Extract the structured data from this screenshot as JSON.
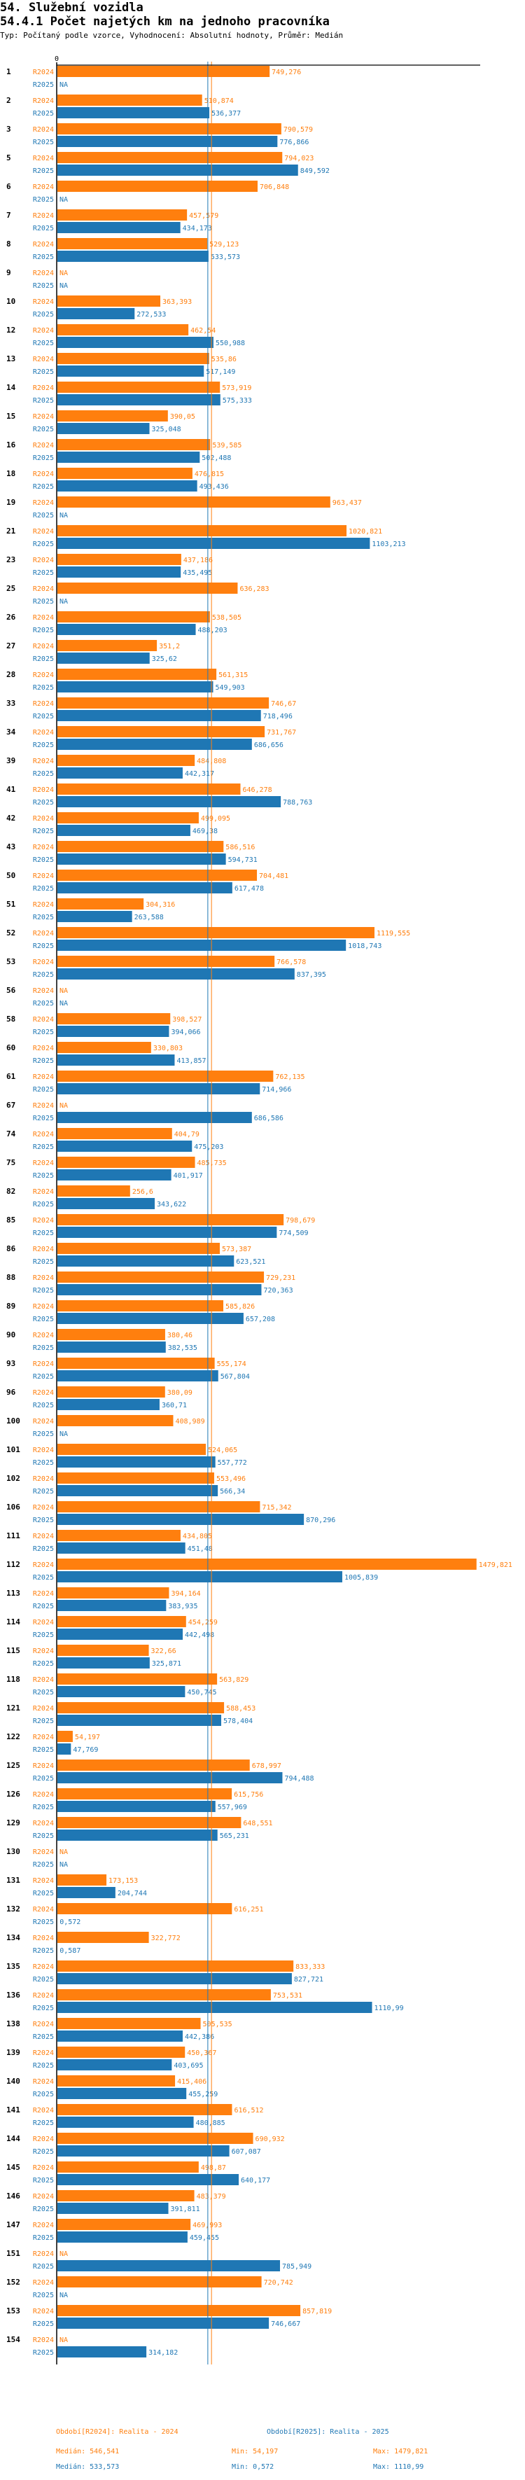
{
  "header": {
    "title": "54. Služební vozidla",
    "subtitle": "54.4.1 Počet najetých km na jednoho pracovníka",
    "meta": "Typ: Počítaný podle vzorce, Vyhodnocení: Absolutní hodnoty, Průměr: Medián"
  },
  "colors": {
    "R2024": "#ff7f0e",
    "R2025": "#1f77b4",
    "axis": "#000000"
  },
  "chart_data": {
    "type": "bar",
    "orientation": "horizontal",
    "title": "54.4.1 Počet najetých km na jednoho pracovníka",
    "xlabel": "",
    "ylabel": "",
    "x_tick_labels": [
      "0"
    ],
    "xlim": [
      0,
      1479.821
    ],
    "grid": false,
    "series_names": [
      "R2024",
      "R2025"
    ],
    "reference_lines": [
      {
        "series": "R2024",
        "type": "median",
        "value": 546.541
      },
      {
        "series": "R2025",
        "type": "median",
        "value": 533.573
      }
    ],
    "groups": [
      {
        "id": "1",
        "R2024": 749.276,
        "R2025": null,
        "R2024_label": "749,276",
        "R2025_label": "NA"
      },
      {
        "id": "2",
        "R2024": 510.874,
        "R2025": 536.377,
        "R2024_label": "510,874",
        "R2025_label": "536,377"
      },
      {
        "id": "3",
        "R2024": 790.579,
        "R2025": 776.866,
        "R2024_label": "790,579",
        "R2025_label": "776,866"
      },
      {
        "id": "5",
        "R2024": 794.023,
        "R2025": 849.592,
        "R2024_label": "794,023",
        "R2025_label": "849,592"
      },
      {
        "id": "6",
        "R2024": 706.848,
        "R2025": null,
        "R2024_label": "706,848",
        "R2025_label": "NA"
      },
      {
        "id": "7",
        "R2024": 457.579,
        "R2025": 434.173,
        "R2024_label": "457,579",
        "R2025_label": "434,173"
      },
      {
        "id": "8",
        "R2024": 529.123,
        "R2025": 533.573,
        "R2024_label": "529,123",
        "R2025_label": "533,573"
      },
      {
        "id": "9",
        "R2024": null,
        "R2025": null,
        "R2024_label": "NA",
        "R2025_label": "NA"
      },
      {
        "id": "10",
        "R2024": 363.393,
        "R2025": 272.533,
        "R2024_label": "363,393",
        "R2025_label": "272,533"
      },
      {
        "id": "12",
        "R2024": 462.54,
        "R2025": 550.988,
        "R2024_label": "462,54",
        "R2025_label": "550,988"
      },
      {
        "id": "13",
        "R2024": 535.86,
        "R2025": 517.149,
        "R2024_label": "535,86",
        "R2025_label": "517,149"
      },
      {
        "id": "14",
        "R2024": 573.919,
        "R2025": 575.333,
        "R2024_label": "573,919",
        "R2025_label": "575,333"
      },
      {
        "id": "15",
        "R2024": 390.05,
        "R2025": 325.048,
        "R2024_label": "390,05",
        "R2025_label": "325,048"
      },
      {
        "id": "16",
        "R2024": 539.585,
        "R2025": 502.488,
        "R2024_label": "539,585",
        "R2025_label": "502,488"
      },
      {
        "id": "18",
        "R2024": 476.815,
        "R2025": 493.436,
        "R2024_label": "476,815",
        "R2025_label": "493,436"
      },
      {
        "id": "19",
        "R2024": 963.437,
        "R2025": null,
        "R2024_label": "963,437",
        "R2025_label": "NA"
      },
      {
        "id": "21",
        "R2024": 1020.821,
        "R2025": 1103.213,
        "R2024_label": "1020,821",
        "R2025_label": "1103,213"
      },
      {
        "id": "23",
        "R2024": 437.186,
        "R2025": 435.495,
        "R2024_label": "437,186",
        "R2025_label": "435,495"
      },
      {
        "id": "25",
        "R2024": 636.283,
        "R2025": null,
        "R2024_label": "636,283",
        "R2025_label": "NA"
      },
      {
        "id": "26",
        "R2024": 538.505,
        "R2025": 488.203,
        "R2024_label": "538,505",
        "R2025_label": "488,203"
      },
      {
        "id": "27",
        "R2024": 351.2,
        "R2025": 325.62,
        "R2024_label": "351,2",
        "R2025_label": "325,62"
      },
      {
        "id": "28",
        "R2024": 561.315,
        "R2025": 549.903,
        "R2024_label": "561,315",
        "R2025_label": "549,903"
      },
      {
        "id": "33",
        "R2024": 746.67,
        "R2025": 718.496,
        "R2024_label": "746,67",
        "R2025_label": "718,496"
      },
      {
        "id": "34",
        "R2024": 731.767,
        "R2025": 686.656,
        "R2024_label": "731,767",
        "R2025_label": "686,656"
      },
      {
        "id": "39",
        "R2024": 484.808,
        "R2025": 442.317,
        "R2024_label": "484,808",
        "R2025_label": "442,317"
      },
      {
        "id": "41",
        "R2024": 646.278,
        "R2025": 788.763,
        "R2024_label": "646,278",
        "R2025_label": "788,763"
      },
      {
        "id": "42",
        "R2024": 499.095,
        "R2025": 469.38,
        "R2024_label": "499,095",
        "R2025_label": "469,38"
      },
      {
        "id": "43",
        "R2024": 586.516,
        "R2025": 594.731,
        "R2024_label": "586,516",
        "R2025_label": "594,731"
      },
      {
        "id": "50",
        "R2024": 704.481,
        "R2025": 617.478,
        "R2024_label": "704,481",
        "R2025_label": "617,478"
      },
      {
        "id": "51",
        "R2024": 304.316,
        "R2025": 263.588,
        "R2024_label": "304,316",
        "R2025_label": "263,588"
      },
      {
        "id": "52",
        "R2024": 1119.555,
        "R2025": 1018.743,
        "R2024_label": "1119,555",
        "R2025_label": "1018,743"
      },
      {
        "id": "53",
        "R2024": 766.578,
        "R2025": 837.395,
        "R2024_label": "766,578",
        "R2025_label": "837,395"
      },
      {
        "id": "56",
        "R2024": null,
        "R2025": null,
        "R2024_label": "NA",
        "R2025_label": "NA"
      },
      {
        "id": "58",
        "R2024": 398.527,
        "R2025": 394.066,
        "R2024_label": "398,527",
        "R2025_label": "394,066"
      },
      {
        "id": "60",
        "R2024": 330.803,
        "R2025": 413.857,
        "R2024_label": "330,803",
        "R2025_label": "413,857"
      },
      {
        "id": "61",
        "R2024": 762.135,
        "R2025": 714.966,
        "R2024_label": "762,135",
        "R2025_label": "714,966"
      },
      {
        "id": "67",
        "R2024": null,
        "R2025": 686.586,
        "R2024_label": "NA",
        "R2025_label": "686,586"
      },
      {
        "id": "74",
        "R2024": 404.79,
        "R2025": 475.203,
        "R2024_label": "404,79",
        "R2025_label": "475,203"
      },
      {
        "id": "75",
        "R2024": 485.735,
        "R2025": 401.917,
        "R2024_label": "485,735",
        "R2025_label": "401,917"
      },
      {
        "id": "82",
        "R2024": 256.6,
        "R2025": 343.622,
        "R2024_label": "256,6",
        "R2025_label": "343,622"
      },
      {
        "id": "85",
        "R2024": 798.679,
        "R2025": 774.509,
        "R2024_label": "798,679",
        "R2025_label": "774,509"
      },
      {
        "id": "86",
        "R2024": 573.387,
        "R2025": 623.521,
        "R2024_label": "573,387",
        "R2025_label": "623,521"
      },
      {
        "id": "88",
        "R2024": 729.231,
        "R2025": 720.363,
        "R2024_label": "729,231",
        "R2025_label": "720,363"
      },
      {
        "id": "89",
        "R2024": 585.826,
        "R2025": 657.208,
        "R2024_label": "585,826",
        "R2025_label": "657,208"
      },
      {
        "id": "90",
        "R2024": 380.46,
        "R2025": 382.535,
        "R2024_label": "380,46",
        "R2025_label": "382,535"
      },
      {
        "id": "93",
        "R2024": 555.174,
        "R2025": 567.804,
        "R2024_label": "555,174",
        "R2025_label": "567,804"
      },
      {
        "id": "96",
        "R2024": 380.09,
        "R2025": 360.71,
        "R2024_label": "380,09",
        "R2025_label": "360,71"
      },
      {
        "id": "100",
        "R2024": 408.989,
        "R2025": null,
        "R2024_label": "408,989",
        "R2025_label": "NA"
      },
      {
        "id": "101",
        "R2024": 524.065,
        "R2025": 557.772,
        "R2024_label": "524,065",
        "R2025_label": "557,772"
      },
      {
        "id": "102",
        "R2024": 553.496,
        "R2025": 566.34,
        "R2024_label": "553,496",
        "R2025_label": "566,34"
      },
      {
        "id": "106",
        "R2024": 715.342,
        "R2025": 870.296,
        "R2024_label": "715,342",
        "R2025_label": "870,296"
      },
      {
        "id": "111",
        "R2024": 434.805,
        "R2025": 451.48,
        "R2024_label": "434,805",
        "R2025_label": "451,48"
      },
      {
        "id": "112",
        "R2024": 1479.821,
        "R2025": 1005.839,
        "R2024_label": "1479,821",
        "R2025_label": "1005,839"
      },
      {
        "id": "113",
        "R2024": 394.164,
        "R2025": 383.935,
        "R2024_label": "394,164",
        "R2025_label": "383,935"
      },
      {
        "id": "114",
        "R2024": 454.259,
        "R2025": 442.498,
        "R2024_label": "454,259",
        "R2025_label": "442,498"
      },
      {
        "id": "115",
        "R2024": 322.66,
        "R2025": 325.871,
        "R2024_label": "322,66",
        "R2025_label": "325,871"
      },
      {
        "id": "118",
        "R2024": 563.829,
        "R2025": 450.745,
        "R2024_label": "563,829",
        "R2025_label": "450,745"
      },
      {
        "id": "121",
        "R2024": 588.453,
        "R2025": 578.404,
        "R2024_label": "588,453",
        "R2025_label": "578,404"
      },
      {
        "id": "122",
        "R2024": 54.197,
        "R2025": 47.769,
        "R2024_label": "54,197",
        "R2025_label": "47,769"
      },
      {
        "id": "125",
        "R2024": 678.997,
        "R2025": 794.488,
        "R2024_label": "678,997",
        "R2025_label": "794,488"
      },
      {
        "id": "126",
        "R2024": 615.756,
        "R2025": 557.969,
        "R2024_label": "615,756",
        "R2025_label": "557,969"
      },
      {
        "id": "129",
        "R2024": 648.551,
        "R2025": 565.231,
        "R2024_label": "648,551",
        "R2025_label": "565,231"
      },
      {
        "id": "130",
        "R2024": null,
        "R2025": null,
        "R2024_label": "NA",
        "R2025_label": "NA"
      },
      {
        "id": "131",
        "R2024": 173.153,
        "R2025": 204.744,
        "R2024_label": "173,153",
        "R2025_label": "204,744"
      },
      {
        "id": "132",
        "R2024": 616.251,
        "R2025": 0.572,
        "R2024_label": "616,251",
        "R2025_label": "0,572"
      },
      {
        "id": "134",
        "R2024": 322.772,
        "R2025": 0.587,
        "R2024_label": "322,772",
        "R2025_label": "0,587"
      },
      {
        "id": "135",
        "R2024": 833.333,
        "R2025": 827.721,
        "R2024_label": "833,333",
        "R2025_label": "827,721"
      },
      {
        "id": "136",
        "R2024": 753.531,
        "R2025": 1110.99,
        "R2024_label": "753,531",
        "R2025_label": "1110,99"
      },
      {
        "id": "138",
        "R2024": 505.535,
        "R2025": 442.386,
        "R2024_label": "505,535",
        "R2025_label": "442,386"
      },
      {
        "id": "139",
        "R2024": 450.367,
        "R2025": 403.695,
        "R2024_label": "450,367",
        "R2025_label": "403,695"
      },
      {
        "id": "140",
        "R2024": 415.406,
        "R2025": 455.259,
        "R2024_label": "415,406",
        "R2025_label": "455,259"
      },
      {
        "id": "141",
        "R2024": 616.512,
        "R2025": 480.885,
        "R2024_label": "616,512",
        "R2025_label": "480,885"
      },
      {
        "id": "144",
        "R2024": 690.932,
        "R2025": 607.087,
        "R2024_label": "690,932",
        "R2025_label": "607,087"
      },
      {
        "id": "145",
        "R2024": 498.87,
        "R2025": 640.177,
        "R2024_label": "498,87",
        "R2025_label": "640,177"
      },
      {
        "id": "146",
        "R2024": 483.379,
        "R2025": 391.811,
        "R2024_label": "483,379",
        "R2025_label": "391,811"
      },
      {
        "id": "147",
        "R2024": 469.993,
        "R2025": 459.455,
        "R2024_label": "469,993",
        "R2025_label": "459,455"
      },
      {
        "id": "151",
        "R2024": null,
        "R2025": 785.949,
        "R2024_label": "NA",
        "R2025_label": "785,949"
      },
      {
        "id": "152",
        "R2024": 720.742,
        "R2025": null,
        "R2024_label": "720,742",
        "R2025_label": "NA"
      },
      {
        "id": "153",
        "R2024": 857.819,
        "R2025": 746.667,
        "R2024_label": "857,819",
        "R2025_label": "746,667"
      },
      {
        "id": "154",
        "R2024": null,
        "R2025": 314.182,
        "R2024_label": "NA",
        "R2025_label": "314,182"
      }
    ]
  },
  "legend": {
    "r2024_period": "Období[R2024]: Realita - 2024",
    "r2025_period": "Období[R2025]: Realita - 2025",
    "r2024_median": "Medián: 546,541",
    "r2024_min": "Min: 54,197",
    "r2024_max": "Max: 1479,821",
    "r2025_median": "Medián: 533,573",
    "r2025_min": "Min: 0,572",
    "r2025_max": "Max: 1110,99"
  }
}
